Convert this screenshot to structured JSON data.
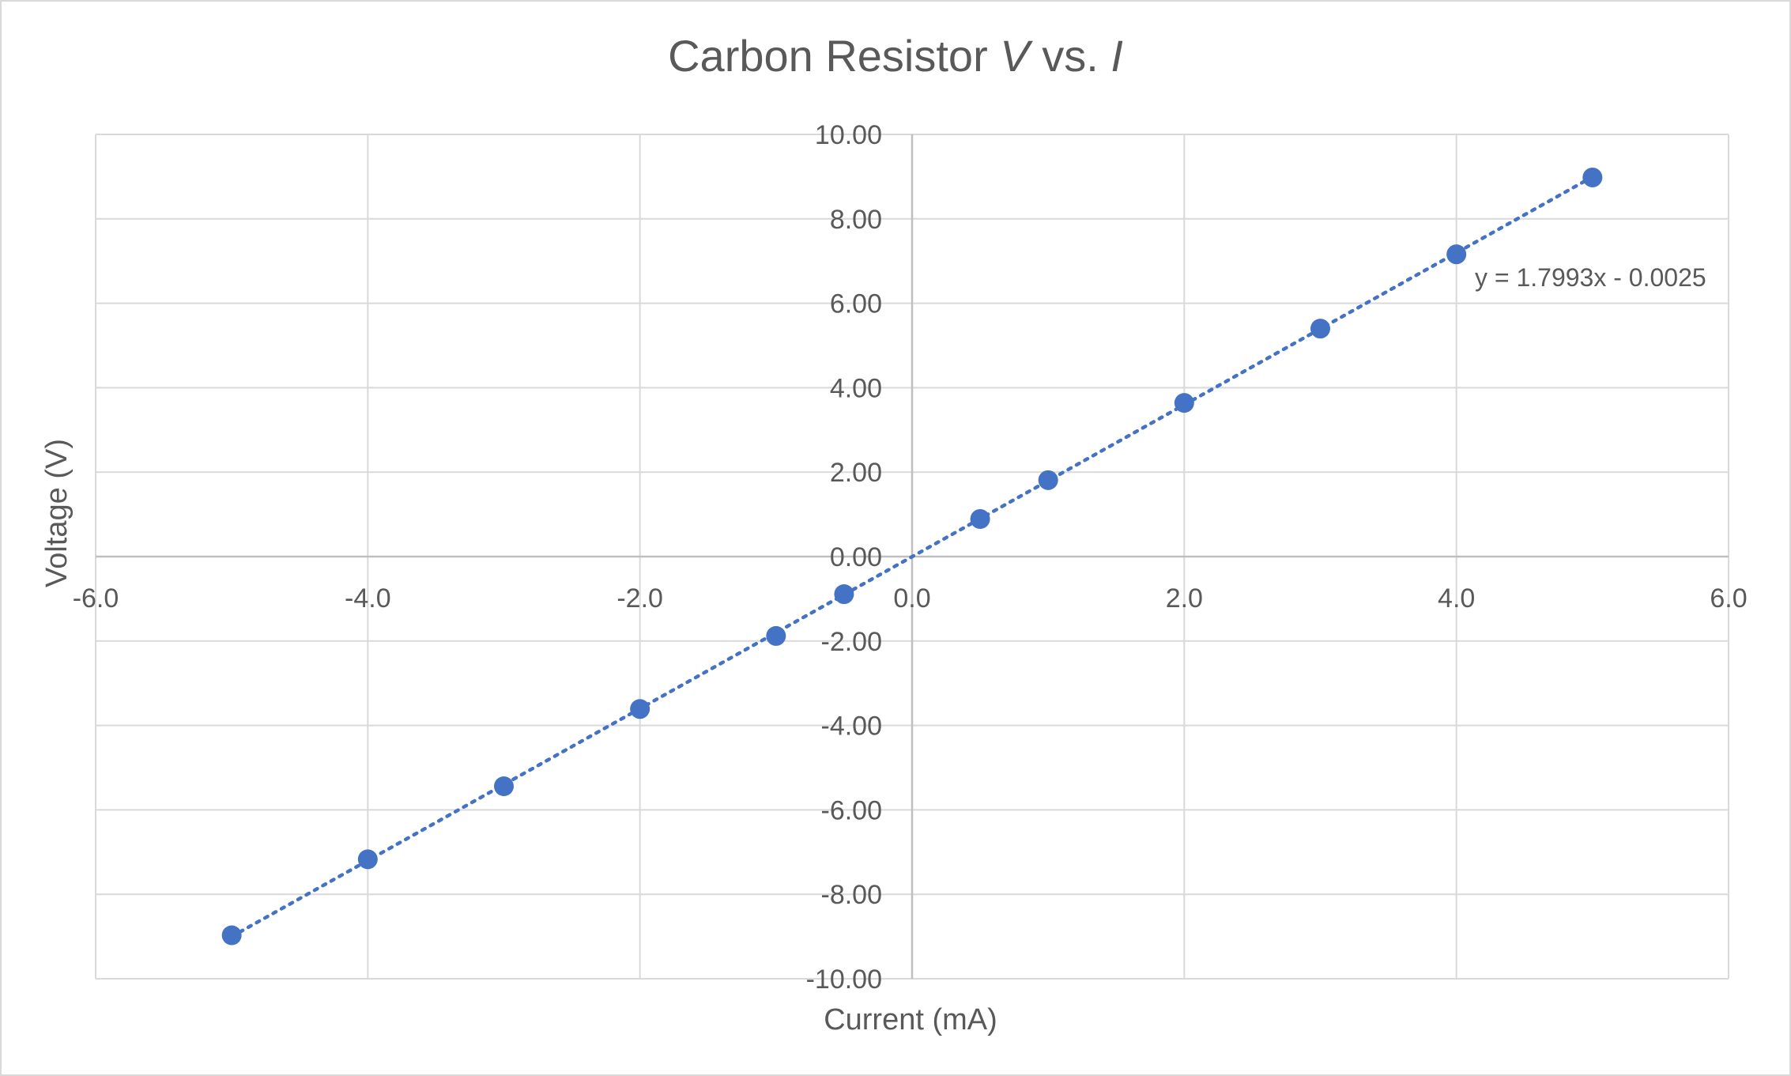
{
  "chart_data": {
    "type": "scatter",
    "title": {
      "part1": "Carbon Resistor ",
      "var1": "V",
      "part2": " vs. ",
      "var2": "I"
    },
    "xlabel": "Current (mA)",
    "ylabel": "Voltage (V)",
    "xlim": [
      -6.0,
      6.0
    ],
    "ylim": [
      -10.0,
      10.0
    ],
    "x_ticks": [
      "-6.0",
      "-4.0",
      "-2.0",
      "0.0",
      "2.0",
      "4.0",
      "6.0"
    ],
    "y_ticks": [
      "10.00",
      "8.00",
      "6.00",
      "4.00",
      "2.00",
      "0.00",
      "-2.00",
      "-4.00",
      "-6.00",
      "-8.00",
      "-10.00"
    ],
    "grid": true,
    "legend": "none",
    "series": [
      {
        "color": "#4472c4",
        "points": [
          {
            "x": -5.0,
            "y": -8.97
          },
          {
            "x": -4.0,
            "y": -7.17
          },
          {
            "x": -3.0,
            "y": -5.44
          },
          {
            "x": -2.0,
            "y": -3.61
          },
          {
            "x": -1.0,
            "y": -1.88
          },
          {
            "x": -0.5,
            "y": -0.89
          },
          {
            "x": 0.5,
            "y": 0.89
          },
          {
            "x": 1.0,
            "y": 1.81
          },
          {
            "x": 2.0,
            "y": 3.64
          },
          {
            "x": 3.0,
            "y": 5.4
          },
          {
            "x": 4.0,
            "y": 7.16
          },
          {
            "x": 5.0,
            "y": 8.98
          }
        ]
      }
    ],
    "trendline": {
      "type": "linear",
      "style": "dotted",
      "slope": 1.7993,
      "intercept": -0.0025,
      "x_range": [
        -5.0,
        5.0
      ],
      "equation": "y = 1.7993x - 0.0025"
    },
    "colors": {
      "series": "#4472c4",
      "grid": "#d9d9d9",
      "axis": "#bfbfbf",
      "text": "#595959"
    }
  }
}
